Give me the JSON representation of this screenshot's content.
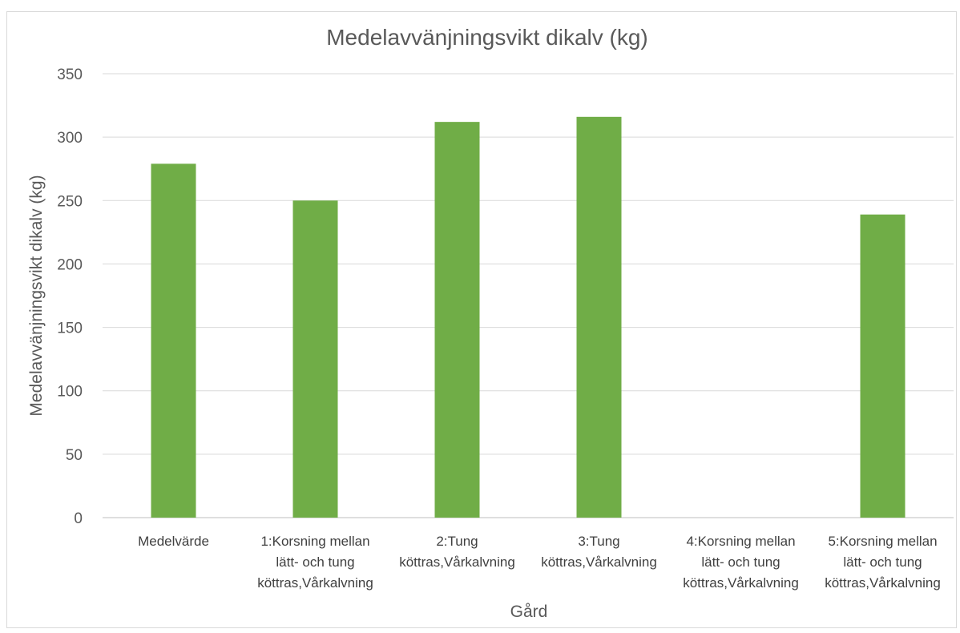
{
  "chart_data": {
    "type": "bar",
    "title": "Medelavvänjningsvikt dikalv (kg)",
    "xlabel": "Gård",
    "ylabel": "Medelavvänjningsvikt  dikalv (kg)",
    "ylim": [
      0,
      350
    ],
    "yticks": [
      "0",
      "50",
      "100",
      "150",
      "200",
      "250",
      "300",
      "350"
    ],
    "grid": true,
    "bar_color": "#70ad47",
    "categories": [
      [
        "Medelvärde"
      ],
      [
        "1:Korsning mellan",
        "lätt- och tung",
        "köttras,Vårkalvning"
      ],
      [
        "2:Tung",
        "köttras,Vårkalvning"
      ],
      [
        "3:Tung",
        "köttras,Vårkalvning"
      ],
      [
        "4:Korsning mellan",
        "lätt- och tung",
        "köttras,Vårkalvning"
      ],
      [
        "5:Korsning mellan",
        "lätt- och tung",
        "köttras,Vårkalvning"
      ]
    ],
    "values": [
      279,
      250,
      312,
      316,
      null,
      239
    ]
  }
}
